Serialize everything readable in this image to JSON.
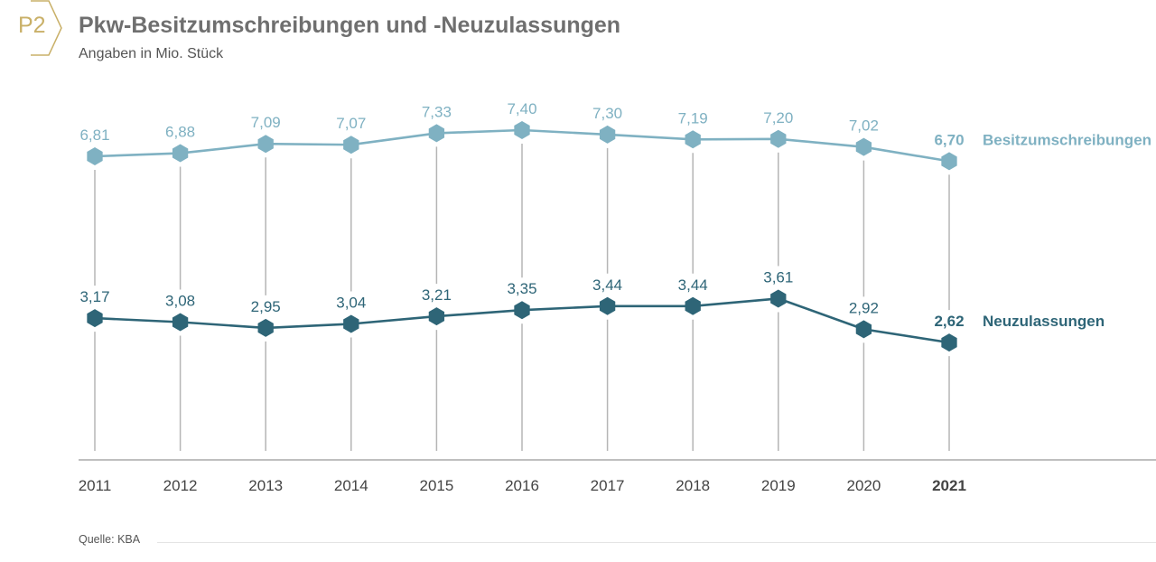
{
  "header": {
    "badge": "P2",
    "title": "Pkw-Besitzumschreibungen und -Neuzulassungen",
    "subtitle": "Angaben in Mio. Stück"
  },
  "footer": {
    "source": "Quelle: KBA"
  },
  "colors": {
    "accent_gold": "#c9b068",
    "series_light": "#7fb1c2",
    "series_dark": "#2e6577",
    "dropline": "#b5b5b5",
    "axis": "#aaaaaa"
  },
  "chart_data": {
    "type": "line",
    "title": "Pkw-Besitzumschreibungen und -Neuzulassungen",
    "subtitle": "Angaben in Mio. Stück",
    "xlabel": "",
    "ylabel": "",
    "x": [
      "2011",
      "2012",
      "2013",
      "2014",
      "2015",
      "2016",
      "2017",
      "2018",
      "2019",
      "2020",
      "2021"
    ],
    "highlight_x": "2021",
    "ylim": [
      0,
      7.6
    ],
    "grid": false,
    "legend": "right, inline at series ends",
    "series": [
      {
        "name": "Besitzumschreibungen",
        "color": "#7fb1c2",
        "values": [
          6.81,
          6.88,
          7.09,
          7.07,
          7.33,
          7.4,
          7.3,
          7.19,
          7.2,
          7.02,
          6.7
        ],
        "labels": [
          "6,81",
          "6,88",
          "7,09",
          "7,07",
          "7,33",
          "7,40",
          "7,30",
          "7,19",
          "7,20",
          "7,02",
          "6,70"
        ]
      },
      {
        "name": "Neuzulassungen",
        "color": "#2e6577",
        "values": [
          3.17,
          3.08,
          2.95,
          3.04,
          3.21,
          3.35,
          3.44,
          3.44,
          3.61,
          2.92,
          2.62
        ],
        "labels": [
          "3,17",
          "3,08",
          "2,95",
          "3,04",
          "3,21",
          "3,35",
          "3,44",
          "3,44",
          "3,61",
          "2,92",
          "2,62"
        ]
      }
    ],
    "source": "Quelle: KBA"
  }
}
